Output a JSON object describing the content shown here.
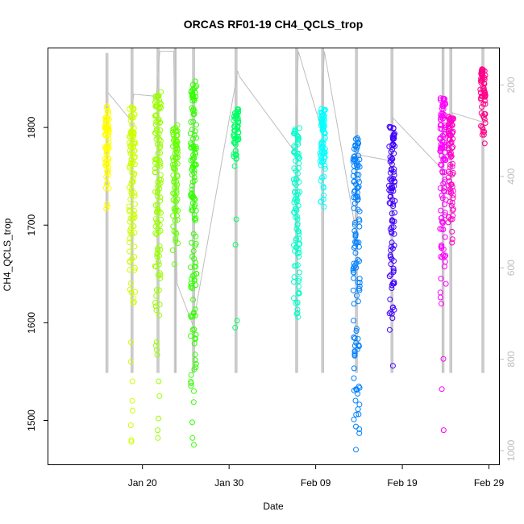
{
  "chart_data": {
    "type": "scatter",
    "title": "ORCAS RF01-19 CH4_QCLS_trop",
    "xlabel": "Date",
    "ylabel": "CH4_QCLS_trop",
    "x_ticks": [
      "Jan 20",
      "Jan 30",
      "Feb 09",
      "Feb 19",
      "Feb 29"
    ],
    "y_ticks": [
      1500,
      1600,
      1700,
      1800
    ],
    "y2_ticks": [
      200,
      400,
      600,
      800,
      1000
    ],
    "xlim_days": [
      11.0,
      59.3
    ],
    "ylim": [
      1455,
      1881
    ],
    "y2lim": [
      1030,
      120
    ],
    "grid": false,
    "legend": "none",
    "colors": {
      "pressure_trace": "#bebebe",
      "axis": "#000000"
    },
    "flights": [
      {
        "day": 15.9,
        "color": "#FFFF00",
        "range": [
          1708,
          1822
        ],
        "lows": [],
        "p_min": 130,
        "p_max": 830,
        "width": 0.25
      },
      {
        "day": 18.8,
        "color": "#CCFF00",
        "range": [
          1590,
          1822
        ],
        "lows": [
          1580,
          1560,
          1540,
          1520,
          1510,
          1495,
          1480,
          1478
        ],
        "p_min": 120,
        "p_max": 830,
        "width": 0.35
      },
      {
        "day": 21.8,
        "color": "#99FF00",
        "range": [
          1550,
          1838
        ],
        "lows": [
          1540,
          1525,
          1502,
          1490,
          1482
        ],
        "p_min": 120,
        "p_max": 830,
        "width": 0.35
      },
      {
        "day": 23.8,
        "color": "#66FF00",
        "range": [
          1662,
          1805
        ],
        "lows": [
          1660
        ],
        "p_min": 120,
        "p_max": 830,
        "width": 0.3
      },
      {
        "day": 25.9,
        "color": "#33FF00",
        "range": [
          1505,
          1848
        ],
        "lows": [
          1498,
          1482,
          1475
        ],
        "p_min": 120,
        "p_max": 830,
        "width": 0.35
      },
      {
        "day": 30.8,
        "color": "#00FF66",
        "range": [
          1756,
          1820
        ],
        "lows": [
          1706,
          1680,
          1602,
          1595
        ],
        "p_min": 120,
        "p_max": 830,
        "width": 0.3
      },
      {
        "day": 37.8,
        "color": "#00FFCC",
        "range": [
          1600,
          1800
        ],
        "lows": [
          1620,
          1610
        ],
        "p_min": 120,
        "p_max": 830,
        "width": 0.35
      },
      {
        "day": 40.8,
        "color": "#00FFFF",
        "range": [
          1712,
          1824
        ],
        "lows": [],
        "p_min": 120,
        "p_max": 830,
        "width": 0.3
      },
      {
        "day": 44.7,
        "color": "#0080FF",
        "range": [
          1478,
          1790
        ],
        "lows": [
          1470
        ],
        "p_min": 120,
        "p_max": 830,
        "width": 0.4
      },
      {
        "day": 54.7,
        "color": "#FF00FF",
        "range": [
          1610,
          1830
        ],
        "lows": [
          1563,
          1532,
          1490
        ],
        "p_min": 120,
        "p_max": 830,
        "width": 0.35
      },
      {
        "day": 55.6,
        "color": "#FF00CC",
        "range": [
          1672,
          1812
        ],
        "lows": [],
        "p_min": 120,
        "p_max": 830,
        "width": 0.3
      },
      {
        "day": 59.3,
        "color": "#FF0088",
        "range": [
          1772,
          1860
        ],
        "lows": [],
        "p_min": 120,
        "p_max": 830,
        "width": 0.3
      }
    ],
    "extra_flight": {
      "day": 48.8,
      "color": "#4000FF",
      "range": [
        1586,
        1802
      ],
      "lows": [
        1556
      ],
      "p_min": 120,
      "p_max": 830,
      "width": 0.35
    },
    "connector_line": [
      [
        16.0,
        1836
      ],
      [
        18.6,
        1808
      ],
      [
        19.0,
        1834
      ],
      [
        21.6,
        1832
      ],
      [
        22.0,
        1878
      ],
      [
        23.6,
        1878
      ],
      [
        24.0,
        1640
      ],
      [
        25.8,
        1598
      ],
      [
        26.0,
        1606
      ],
      [
        31.0,
        1858
      ],
      [
        31.2,
        1852
      ],
      [
        37.6,
        1775
      ],
      [
        38.0,
        1878
      ],
      [
        40.6,
        1800
      ],
      [
        41.0,
        1878
      ],
      [
        44.5,
        1700
      ],
      [
        44.9,
        1772
      ],
      [
        48.6,
        1766
      ],
      [
        48.9,
        1810
      ],
      [
        54.5,
        1758
      ],
      [
        54.9,
        1770
      ],
      [
        55.4,
        1778
      ],
      [
        55.8,
        1815
      ],
      [
        59.1,
        1806
      ]
    ]
  }
}
